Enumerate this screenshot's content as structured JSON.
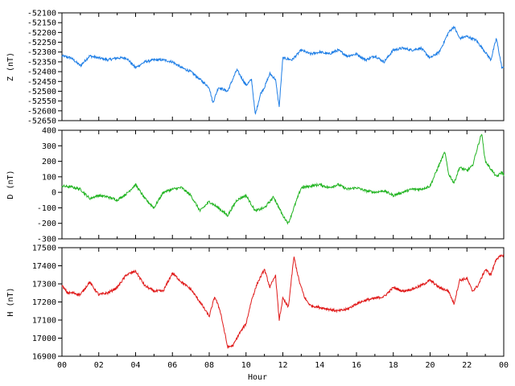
{
  "chart_data": [
    {
      "type": "line",
      "panel": "Z",
      "ylabel": "Z (nT)",
      "color": "#1e7ee6",
      "ylim": [
        -52650,
        -52100
      ],
      "yticks": [
        -52100,
        -52150,
        -52200,
        -52250,
        -52300,
        -52350,
        -52400,
        -52450,
        -52500,
        -52550,
        -52600,
        -52650
      ],
      "xlim": [
        0,
        24
      ],
      "x": [
        0,
        0.5,
        1,
        1.5,
        2,
        2.5,
        3,
        3.5,
        4,
        4.5,
        5,
        5.5,
        6,
        6.5,
        7,
        7.5,
        8,
        8.2,
        8.5,
        9,
        9.5,
        10,
        10.3,
        10.5,
        10.8,
        11,
        11.3,
        11.6,
        11.8,
        12,
        12.5,
        13,
        13.5,
        14,
        14.5,
        15,
        15.5,
        16,
        16.5,
        17,
        17.5,
        18,
        18.5,
        19,
        19.5,
        20,
        20.5,
        21,
        21.3,
        21.6,
        22,
        22.5,
        23,
        23.3,
        23.6,
        23.9,
        24
      ],
      "values": [
        -52320,
        -52330,
        -52370,
        -52320,
        -52330,
        -52340,
        -52330,
        -52330,
        -52380,
        -52350,
        -52340,
        -52340,
        -52350,
        -52380,
        -52400,
        -52440,
        -52480,
        -52560,
        -52480,
        -52500,
        -52390,
        -52470,
        -52440,
        -52620,
        -52510,
        -52480,
        -52410,
        -52440,
        -52580,
        -52330,
        -52340,
        -52290,
        -52310,
        -52300,
        -52310,
        -52290,
        -52320,
        -52310,
        -52340,
        -52320,
        -52350,
        -52290,
        -52280,
        -52290,
        -52280,
        -52330,
        -52300,
        -52200,
        -52170,
        -52230,
        -52220,
        -52240,
        -52300,
        -52340,
        -52230,
        -52380,
        -52380
      ]
    },
    {
      "type": "line",
      "panel": "D",
      "ylabel": "D (nT)",
      "color": "#22b422",
      "ylim": [
        -300,
        400
      ],
      "yticks": [
        -300,
        -200,
        -100,
        0,
        100,
        200,
        300,
        400
      ],
      "xlim": [
        0,
        24
      ],
      "x": [
        0,
        0.5,
        1,
        1.5,
        2,
        2.5,
        3,
        3.5,
        4,
        4.5,
        5,
        5.5,
        6,
        6.5,
        7,
        7.5,
        8,
        8.5,
        9,
        9.5,
        10,
        10.5,
        11,
        11.5,
        12,
        12.3,
        12.6,
        13,
        13.5,
        14,
        14.5,
        15,
        15.5,
        16,
        16.5,
        17,
        17.5,
        18,
        18.5,
        19,
        19.5,
        20,
        20.5,
        20.8,
        21,
        21.3,
        21.6,
        22,
        22.3,
        22.6,
        22.8,
        23,
        23.3,
        23.6,
        23.9,
        24
      ],
      "values": [
        40,
        35,
        20,
        -40,
        -20,
        -30,
        -50,
        -10,
        50,
        -40,
        -100,
        0,
        20,
        30,
        -20,
        -120,
        -60,
        -100,
        -150,
        -50,
        -20,
        -120,
        -100,
        -30,
        -150,
        -200,
        -100,
        30,
        40,
        50,
        30,
        50,
        20,
        30,
        10,
        0,
        10,
        -20,
        0,
        20,
        20,
        40,
        180,
        260,
        120,
        60,
        160,
        140,
        170,
        300,
        380,
        200,
        150,
        100,
        130,
        110
      ]
    },
    {
      "type": "line",
      "panel": "H",
      "xlabel": "Hour",
      "ylabel": "H (nT)",
      "color": "#e01a1a",
      "ylim": [
        16900,
        17500
      ],
      "yticks": [
        16900,
        17000,
        17100,
        17200,
        17300,
        17400,
        17500
      ],
      "xlim": [
        0,
        24
      ],
      "xticks": [
        "00",
        "02",
        "04",
        "06",
        "08",
        "10",
        "12",
        "14",
        "16",
        "18",
        "20",
        "22",
        "00"
      ],
      "x": [
        0,
        0.3,
        0.6,
        1,
        1.5,
        2,
        2.5,
        3,
        3.5,
        4,
        4.5,
        5,
        5.5,
        6,
        6.5,
        7,
        7.5,
        8,
        8.3,
        8.6,
        9,
        9.3,
        9.6,
        10,
        10.3,
        10.6,
        11,
        11.3,
        11.6,
        11.8,
        12,
        12.3,
        12.6,
        12.9,
        13.2,
        13.5,
        14,
        14.5,
        15,
        15.5,
        16,
        16.5,
        17,
        17.5,
        18,
        18.5,
        19,
        19.5,
        20,
        20.5,
        21,
        21.3,
        21.6,
        22,
        22.3,
        22.6,
        23,
        23.3,
        23.6,
        24
      ],
      "values": [
        17290,
        17250,
        17250,
        17240,
        17310,
        17240,
        17250,
        17280,
        17350,
        17370,
        17290,
        17260,
        17260,
        17360,
        17310,
        17270,
        17200,
        17120,
        17230,
        17150,
        16950,
        16960,
        17020,
        17080,
        17210,
        17300,
        17380,
        17280,
        17350,
        17100,
        17220,
        17170,
        17450,
        17310,
        17220,
        17180,
        17170,
        17160,
        17150,
        17160,
        17190,
        17210,
        17220,
        17230,
        17280,
        17260,
        17270,
        17290,
        17320,
        17280,
        17260,
        17190,
        17320,
        17330,
        17260,
        17290,
        17380,
        17350,
        17440,
        17460
      ]
    }
  ]
}
